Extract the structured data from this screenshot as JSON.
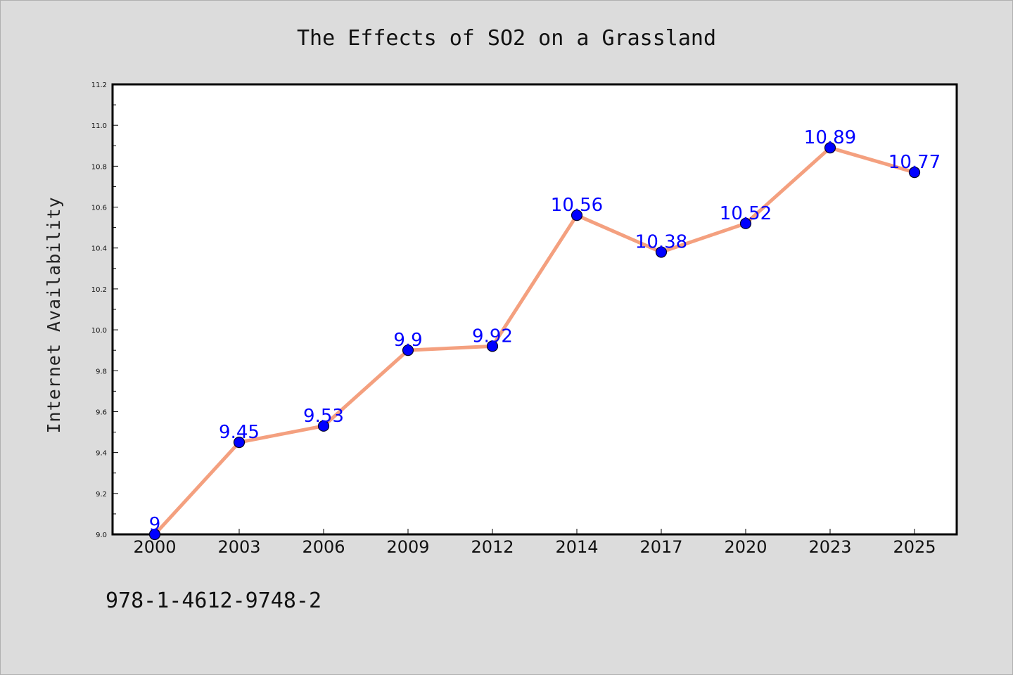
{
  "chart_data": {
    "type": "line",
    "title": "The Effects of SO2 on a Grassland",
    "xlabel": "",
    "ylabel": "Internet Availability",
    "categories": [
      "2000",
      "2003",
      "2006",
      "2009",
      "2012",
      "2014",
      "2017",
      "2020",
      "2023",
      "2025"
    ],
    "values": [
      9,
      9.45,
      9.53,
      9.9,
      9.92,
      10.56,
      10.38,
      10.52,
      10.89,
      10.77
    ],
    "data_labels": [
      "9",
      "9.45",
      "9.53",
      "9.9",
      "9.92",
      "10.56",
      "10.38",
      "10.52",
      "10.89",
      "10.77"
    ],
    "ylim": [
      9.0,
      11.2
    ],
    "yticks": [
      "9.0",
      "9.2",
      "9.4",
      "9.6",
      "9.8",
      "10.0",
      "10.2",
      "10.4",
      "10.6",
      "10.8",
      "11.0",
      "11.2"
    ],
    "grid": false,
    "legend": "none",
    "colors": {
      "line": "#f4a07f",
      "marker": "#0000ff",
      "data_label": "#0000ff",
      "background": "#dcdcdc",
      "plot_background": "#ffffff"
    }
  },
  "footer_text": "978-1-4612-9748-2"
}
